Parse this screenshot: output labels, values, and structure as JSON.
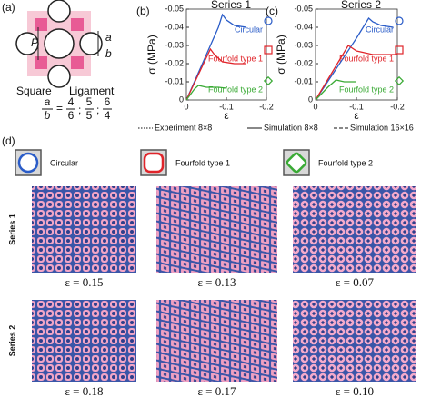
{
  "panel_labels": [
    "(a)",
    "(b)",
    "(c)",
    "(d)"
  ],
  "panel_a": {
    "P": "P",
    "a": "a",
    "b": "b",
    "square": "Square",
    "ligament": "Ligament",
    "ratio_num": "a",
    "ratio_den": "b",
    "ratios": [
      {
        "num": "4",
        "den": "6"
      },
      {
        "num": "5",
        "den": "5"
      },
      {
        "num": "6",
        "den": "4"
      }
    ]
  },
  "chart_data": [
    {
      "type": "line",
      "title": "Series 1",
      "x_label": "ε",
      "y_label": "σ (MPa)",
      "xlim": [
        0,
        -0.2
      ],
      "xticks": [
        0,
        -0.1,
        -0.2
      ],
      "ylim": [
        0,
        -0.05
      ],
      "yticks": [
        0,
        -0.01,
        -0.02,
        -0.03,
        -0.04,
        -0.05
      ],
      "series": [
        {
          "name": "Circular",
          "color": "#2a5cc8",
          "marker": "circle",
          "x": [
            0,
            -0.03,
            -0.06,
            -0.08,
            -0.09,
            -0.1,
            -0.12,
            -0.15
          ],
          "values": [
            0,
            -0.015,
            -0.03,
            -0.04,
            -0.047,
            -0.044,
            -0.041,
            -0.04
          ]
        },
        {
          "name": "Fourfold type 1",
          "color": "#e0242a",
          "marker": "square",
          "x": [
            0,
            -0.03,
            -0.06,
            -0.07,
            -0.09,
            -0.12,
            -0.15
          ],
          "values": [
            0,
            -0.014,
            -0.028,
            -0.025,
            -0.021,
            -0.02,
            -0.02
          ]
        },
        {
          "name": "Fourfold type 2",
          "color": "#3aaa35",
          "marker": "diamond",
          "x": [
            0,
            -0.02,
            -0.03,
            -0.05,
            -0.08,
            -0.1
          ],
          "values": [
            0,
            -0.006,
            -0.008,
            -0.007,
            -0.007,
            -0.0065
          ]
        }
      ]
    },
    {
      "type": "line",
      "title": "Series 2",
      "x_label": "ε",
      "y_label": "σ (MPa)",
      "xlim": [
        0,
        -0.2
      ],
      "xticks": [
        0,
        -0.1,
        -0.2
      ],
      "ylim": [
        0,
        -0.05
      ],
      "yticks": [
        0,
        -0.01,
        -0.02,
        -0.03,
        -0.04,
        -0.05
      ],
      "series": [
        {
          "name": "Circular",
          "color": "#2a5cc8",
          "marker": "circle",
          "x": [
            0,
            -0.05,
            -0.1,
            -0.13,
            -0.14,
            -0.16,
            -0.19
          ],
          "values": [
            0,
            -0.017,
            -0.034,
            -0.045,
            -0.043,
            -0.041,
            -0.04
          ]
        },
        {
          "name": "Fourfold type 1",
          "color": "#e0242a",
          "marker": "square",
          "x": [
            0,
            -0.04,
            -0.08,
            -0.1,
            -0.14,
            -0.2
          ],
          "values": [
            0,
            -0.015,
            -0.03,
            -0.027,
            -0.025,
            -0.025
          ]
        },
        {
          "name": "Fourfold type 2",
          "color": "#3aaa35",
          "marker": "diamond",
          "x": [
            0,
            -0.03,
            -0.05,
            -0.07,
            -0.1
          ],
          "values": [
            0,
            -0.007,
            -0.011,
            -0.01,
            -0.01
          ]
        }
      ]
    }
  ],
  "line_legend": [
    "Experiment 8×8",
    "Simulation 8×8",
    "Simulation 16×16"
  ],
  "panel_d": {
    "legend": [
      "Circular",
      "Fourfold type 1",
      "Fourfold type 2"
    ],
    "rows": [
      {
        "name": "Series 1",
        "strains": [
          "ε = 0.15",
          "ε = 0.13",
          "ε = 0.07"
        ]
      },
      {
        "name": "Series 2",
        "strains": [
          "ε = 0.18",
          "ε = 0.17",
          "ε = 0.10"
        ]
      }
    ]
  }
}
